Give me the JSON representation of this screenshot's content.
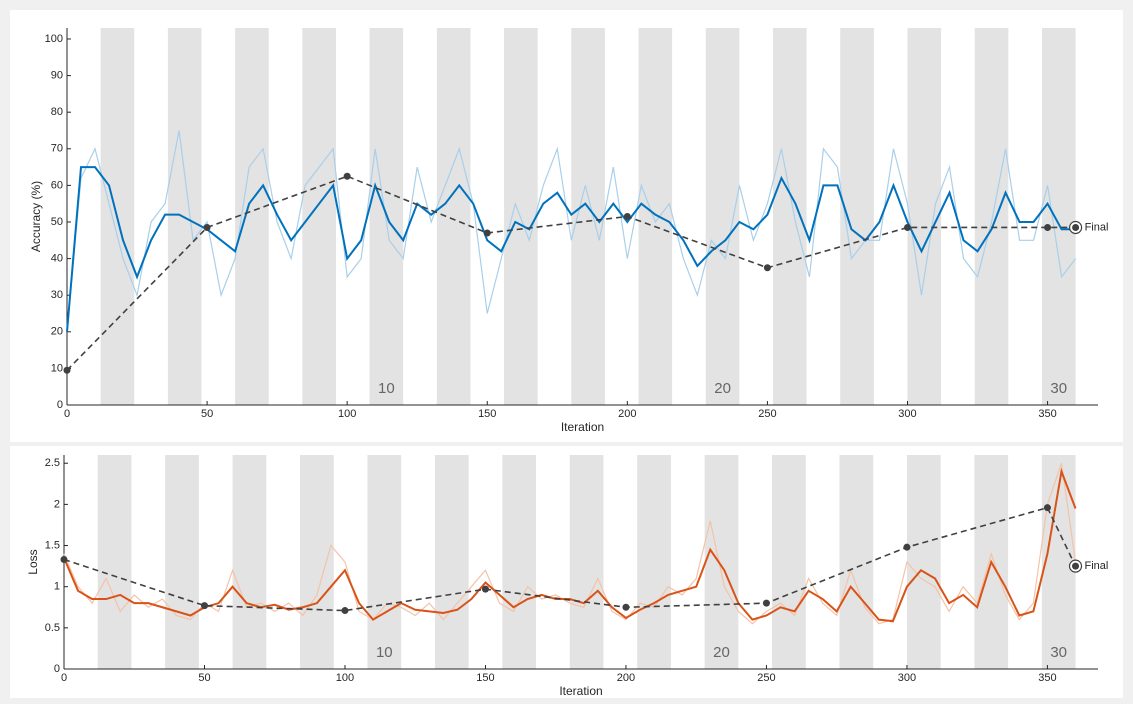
{
  "chart_data": [
    {
      "type": "line",
      "ylabel": "Accuracy (%)",
      "xlabel": "Iteration",
      "xlim": [
        0,
        368
      ],
      "ylim": [
        0,
        103
      ],
      "xticks": [
        0,
        50,
        100,
        150,
        200,
        250,
        300,
        350
      ],
      "yticks": [
        0,
        10,
        20,
        30,
        40,
        50,
        60,
        70,
        80,
        90,
        100
      ],
      "iterations_per_epoch": 12,
      "epoch_count": 30,
      "epoch_ticks": [
        10,
        20,
        30
      ],
      "x": [
        0,
        5,
        10,
        15,
        20,
        25,
        30,
        35,
        40,
        45,
        50,
        55,
        60,
        65,
        70,
        75,
        80,
        85,
        90,
        95,
        100,
        105,
        110,
        115,
        120,
        125,
        130,
        135,
        140,
        145,
        150,
        155,
        160,
        165,
        170,
        175,
        180,
        185,
        190,
        195,
        200,
        205,
        210,
        215,
        220,
        225,
        230,
        235,
        240,
        245,
        250,
        255,
        260,
        265,
        270,
        275,
        280,
        285,
        290,
        295,
        300,
        305,
        310,
        315,
        320,
        325,
        330,
        335,
        340,
        345,
        350,
        355,
        360
      ],
      "raw": {
        "color": "#a9cfea",
        "values": [
          20,
          62,
          70,
          55,
          40,
          30,
          50,
          55,
          75,
          45,
          50,
          30,
          40,
          65,
          70,
          50,
          40,
          60,
          65,
          70,
          35,
          40,
          70,
          45,
          40,
          65,
          50,
          60,
          70,
          55,
          25,
          40,
          55,
          45,
          60,
          70,
          45,
          60,
          45,
          65,
          40,
          60,
          50,
          55,
          40,
          30,
          45,
          40,
          60,
          45,
          55,
          70,
          50,
          35,
          70,
          65,
          40,
          45,
          45,
          70,
          55,
          30,
          55,
          65,
          40,
          35,
          50,
          70,
          45,
          45,
          60,
          35,
          40
        ]
      },
      "smoothed": {
        "color": "#0072bd",
        "values": [
          20,
          65,
          65,
          60,
          45,
          35,
          45,
          52,
          52,
          50,
          48,
          45,
          42,
          55,
          60,
          52,
          45,
          50,
          55,
          60,
          40,
          45,
          60,
          50,
          45,
          55,
          52,
          55,
          60,
          55,
          45,
          42,
          50,
          48,
          55,
          58,
          52,
          55,
          50,
          55,
          50,
          55,
          52,
          50,
          45,
          38,
          42,
          45,
          50,
          48,
          52,
          62,
          55,
          45,
          60,
          60,
          48,
          45,
          50,
          60,
          50,
          42,
          50,
          58,
          45,
          42,
          48,
          58,
          50,
          50,
          55,
          48,
          48
        ]
      },
      "validation": {
        "color": "#404040",
        "x": [
          0,
          50,
          100,
          150,
          200,
          250,
          300,
          350,
          360
        ],
        "values": [
          9.5,
          48.5,
          62.5,
          47,
          51.5,
          37.5,
          48.5,
          48.5,
          48.5
        ]
      },
      "final_label": "Final"
    },
    {
      "type": "line",
      "ylabel": "Loss",
      "xlabel": "Iteration",
      "xlim": [
        0,
        368
      ],
      "ylim": [
        0,
        2.6
      ],
      "xticks": [
        0,
        50,
        100,
        150,
        200,
        250,
        300,
        350
      ],
      "yticks": [
        0,
        0.5,
        1,
        1.5,
        2,
        2.5
      ],
      "iterations_per_epoch": 12,
      "epoch_count": 30,
      "epoch_ticks": [
        10,
        20,
        30
      ],
      "x": [
        0,
        5,
        10,
        15,
        20,
        25,
        30,
        35,
        40,
        45,
        50,
        55,
        60,
        65,
        70,
        75,
        80,
        85,
        90,
        95,
        100,
        105,
        110,
        115,
        120,
        125,
        130,
        135,
        140,
        145,
        150,
        155,
        160,
        165,
        170,
        175,
        180,
        185,
        190,
        195,
        200,
        205,
        210,
        215,
        220,
        225,
        230,
        235,
        240,
        245,
        250,
        255,
        260,
        265,
        270,
        275,
        280,
        285,
        290,
        295,
        300,
        305,
        310,
        315,
        320,
        325,
        330,
        335,
        340,
        345,
        350,
        355,
        360
      ],
      "raw": {
        "color": "#f3c3a8",
        "values": [
          1.4,
          1.0,
          0.8,
          1.1,
          0.7,
          0.9,
          0.75,
          0.85,
          0.65,
          0.6,
          0.8,
          0.7,
          1.2,
          0.75,
          0.8,
          0.7,
          0.8,
          0.65,
          0.9,
          1.5,
          1.3,
          0.7,
          0.6,
          0.8,
          0.75,
          0.65,
          0.8,
          0.6,
          0.8,
          1.0,
          1.2,
          0.8,
          0.7,
          1.0,
          0.85,
          0.9,
          0.8,
          0.75,
          1.1,
          0.7,
          0.6,
          0.8,
          0.75,
          1.0,
          0.9,
          1.1,
          1.8,
          1.0,
          0.7,
          0.55,
          0.7,
          0.8,
          0.65,
          1.1,
          0.8,
          0.65,
          1.2,
          0.75,
          0.55,
          0.6,
          1.3,
          1.1,
          1.0,
          0.7,
          1.0,
          0.8,
          1.4,
          0.9,
          0.6,
          0.8,
          2.0,
          2.5,
          1.3
        ]
      },
      "smoothed": {
        "color": "#d95319",
        "values": [
          1.35,
          0.95,
          0.85,
          0.85,
          0.9,
          0.8,
          0.8,
          0.75,
          0.7,
          0.65,
          0.75,
          0.8,
          1.0,
          0.8,
          0.75,
          0.78,
          0.72,
          0.75,
          0.8,
          1.0,
          1.2,
          0.8,
          0.6,
          0.7,
          0.8,
          0.72,
          0.7,
          0.68,
          0.72,
          0.85,
          1.05,
          0.9,
          0.75,
          0.85,
          0.9,
          0.85,
          0.85,
          0.8,
          0.95,
          0.75,
          0.62,
          0.72,
          0.8,
          0.9,
          0.95,
          1.0,
          1.45,
          1.2,
          0.8,
          0.6,
          0.65,
          0.75,
          0.7,
          0.95,
          0.85,
          0.7,
          1.0,
          0.8,
          0.6,
          0.58,
          1.0,
          1.2,
          1.1,
          0.8,
          0.9,
          0.75,
          1.3,
          1.0,
          0.65,
          0.7,
          1.4,
          2.4,
          1.95
        ]
      },
      "validation": {
        "color": "#404040",
        "x": [
          0,
          50,
          100,
          150,
          200,
          250,
          300,
          350,
          360
        ],
        "values": [
          1.33,
          0.77,
          0.71,
          0.97,
          0.75,
          0.8,
          1.48,
          1.96,
          1.25
        ]
      },
      "final_label": "Final"
    }
  ]
}
